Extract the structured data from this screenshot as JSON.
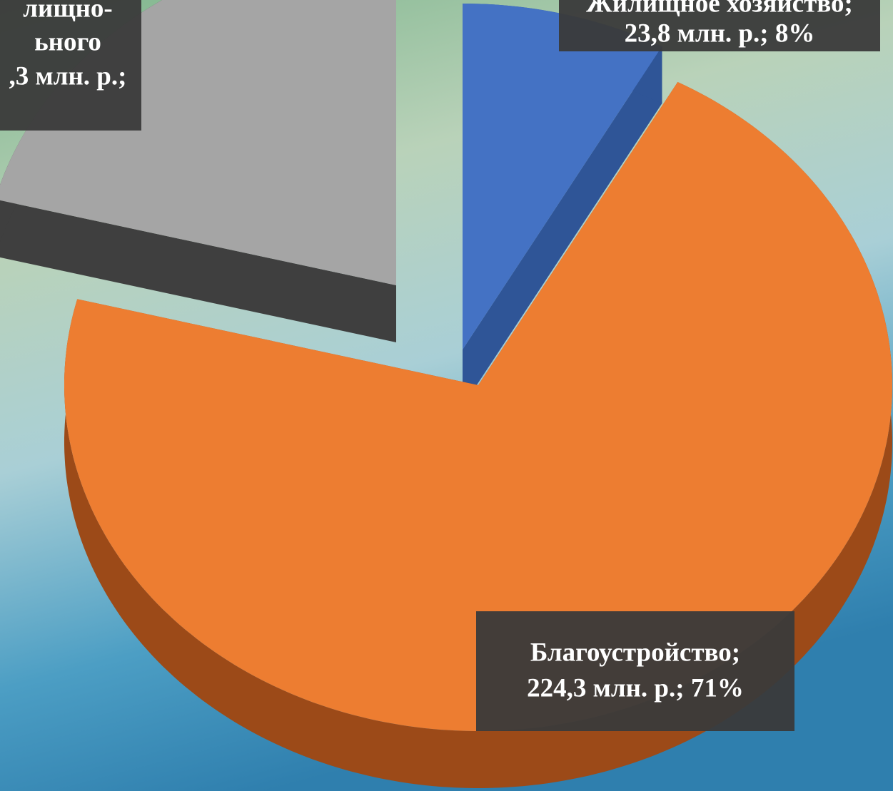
{
  "chart_data": {
    "type": "pie",
    "values": [
      8,
      71,
      21
    ],
    "colors": [
      "#4472c4",
      "#ed7d31",
      "#a5a5a5"
    ],
    "data_labels": [
      [
        "Жилищное хозяйство;",
        "23,8 млн. р.; 8%"
      ],
      [
        "Благоустройство;",
        "224,3 млн. р.; 71%"
      ],
      [
        "лищно-",
        "ьного",
        ",3 млн. р.;"
      ]
    ]
  }
}
